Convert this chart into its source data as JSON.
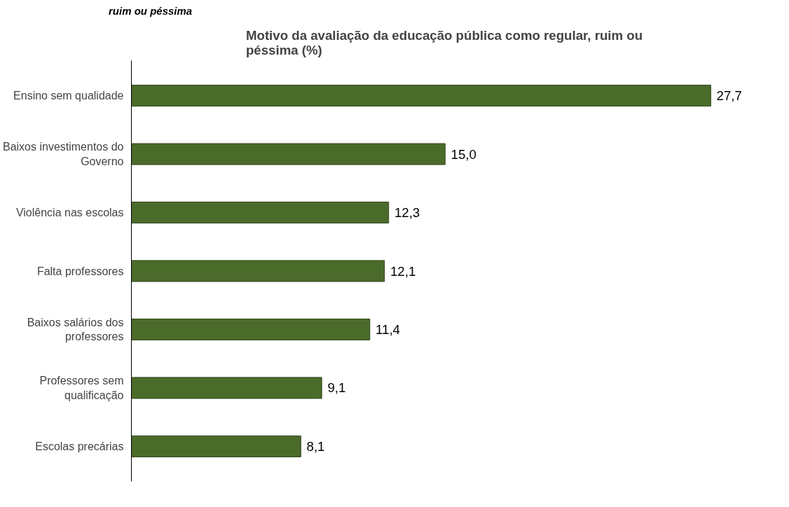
{
  "chart_data": {
    "type": "bar",
    "orientation": "horizontal",
    "title": "Motivo da avaliação da educação pública como regular, ruim ou péssima (%)",
    "categories": [
      "Ensino sem qualidade",
      "Baixos investimentos do Governo",
      "Violência nas escolas",
      "Falta professores",
      "Baixos salários dos professores",
      "Professores sem qualificação",
      "Escolas precárias"
    ],
    "values": [
      27.7,
      15.0,
      12.3,
      12.1,
      11.4,
      9.1,
      8.1
    ],
    "value_labels": [
      "27,7",
      "15,0",
      "12,3",
      "12,1",
      "11,4",
      "9,1",
      "8,1"
    ],
    "color": "#4b6b2b",
    "grid": false,
    "annotations": [
      "ruim ou péssima"
    ]
  }
}
